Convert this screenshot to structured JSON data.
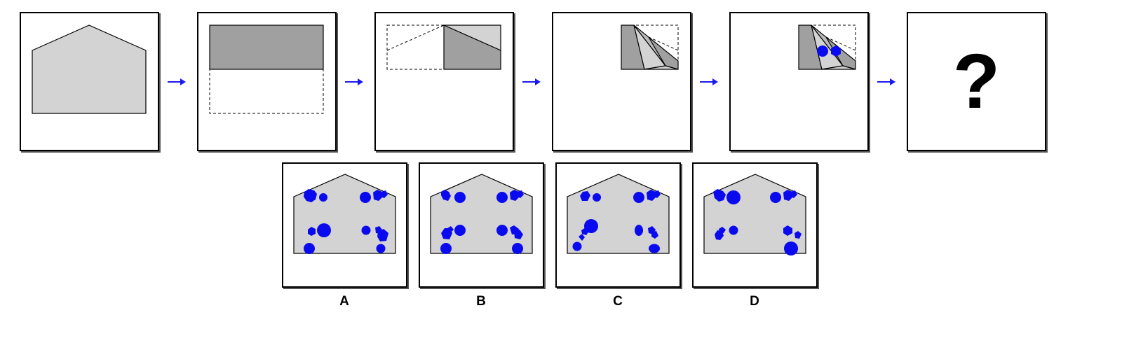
{
  "colors": {
    "paper_light": "#d3d3d3",
    "paper_dark": "#a0a0a0",
    "paper_mid": "#bcbcbc",
    "hole": "#0a0aee",
    "arrow": "#1a1aee",
    "outline": "#000000"
  },
  "sequence": {
    "step_1": "pentagon-paper",
    "step_2": "fold-bottom-half-up",
    "step_3": "fold-left-half-right",
    "step_4": "fold-diagonal-corner",
    "step_5": "punch-two-holes",
    "question": "?"
  },
  "arrow_icon": "right-arrow-icon",
  "options": [
    {
      "label": "A"
    },
    {
      "label": "B"
    },
    {
      "label": "C"
    },
    {
      "label": "D"
    }
  ]
}
